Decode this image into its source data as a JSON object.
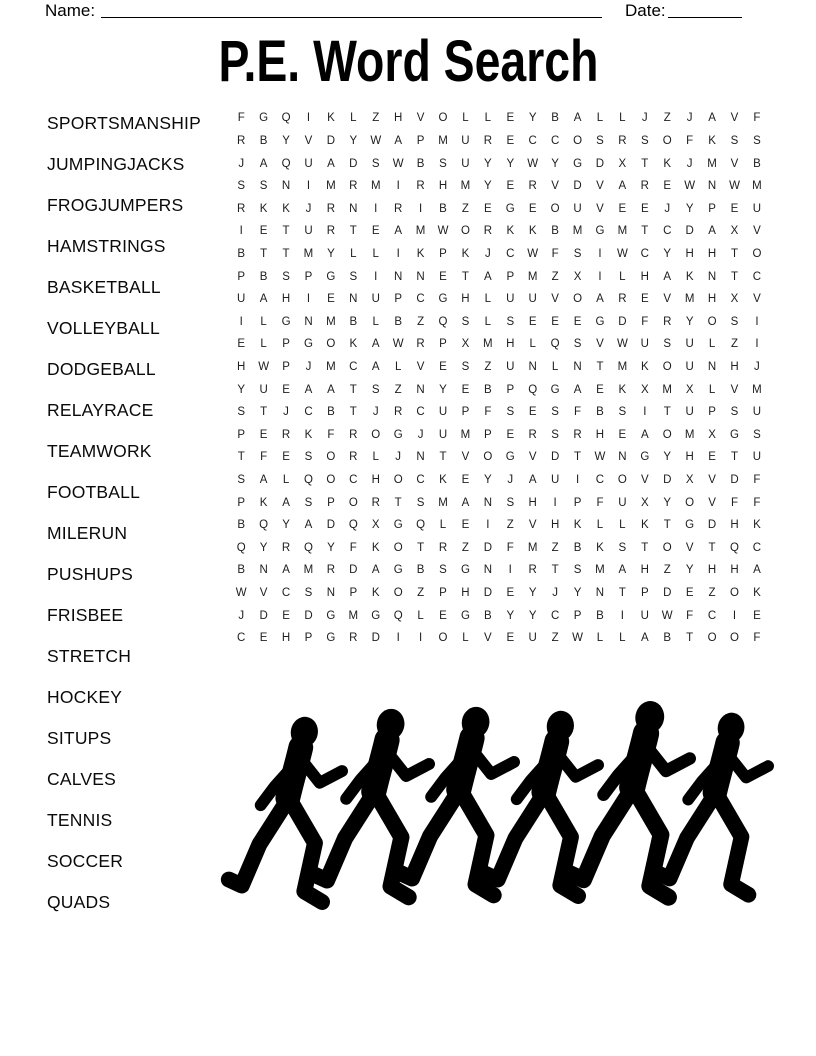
{
  "document": {
    "name_label": "Name:",
    "name_value": "",
    "date_label": "Date:",
    "date_value": "",
    "title": "P.E. Word Search"
  },
  "word_list": [
    "SPORTSMANSHIP",
    "JUMPINGJACKS",
    "FROGJUMPERS",
    "HAMSTRINGS",
    "BASKETBALL",
    "VOLLEYBALL",
    "DODGEBALL",
    "RELAYRACE",
    "TEAMWORK",
    "FOOTBALL",
    "MILERUN",
    "PUSHUPS",
    "FRISBEE",
    "STRETCH",
    "HOCKEY",
    "SITUPS",
    "CALVES",
    "TENNIS",
    "SOCCER",
    "QUADS"
  ],
  "puzzle_grid": {
    "rows": 24,
    "cols": 24,
    "letters": [
      "FGQIKLZHVOLLEYBALLJZJAVF",
      "RBYVDYWAPMURECCOSRSOFKSS",
      "JAQUADSWBSUYYWYGDXTKJMVB",
      "SSNIMRMIRHMYERVDVAREWNWM",
      "RKKJRNIRIBZEGEOUVEEJYPEU",
      "IETURTEAMWORKKBMGMTCDAXV",
      "BTTMYLLIKPKJCWFSIWCYHHTO",
      "PBSPGSINNETAPMZXILHAKNTC",
      "UAHIENUPCGHLUUVOAREVMHXV",
      "ILGNMBLBZQSLSEEEGDFRYOSI",
      "ELPGOKAWRPXMHLQSVWUSULZI",
      "HWPJMCALVESZUNLNTMKOUNHJ",
      "YUEAATSZNYEBPQGAEKXMXLVM",
      "STJCBTJRCUPFSESFBSITUPSU",
      "PERKFROGJUMPERSRHEAOMXGS",
      "TFESORLJNTVOGVDTWNGYHETU",
      "SALQOCHOCKEYJAUICOVDXVDF",
      "PKASPORTSMANSHIPFUXYOVFF",
      "BQYADQXGQLEIZVHKLLKTGDHK",
      "QYRQYFKOTRZDFMZBKSTOVTQC",
      "BNAMRDAGBSGNIRTSMAHZYHHA",
      "WVCSNPKOZPHDEYJYNTPDEZOK",
      "JDEDGMGQLEGBYYCPBIUWFCIE",
      "CEHPGRDIIOLVEUZWLLABTOOF"
    ]
  },
  "illustration": {
    "name": "running-people-silhouettes",
    "figure_count": 6,
    "color": "#000000"
  },
  "colors": {
    "ink": "#000000",
    "grid_letter": "#202020"
  }
}
